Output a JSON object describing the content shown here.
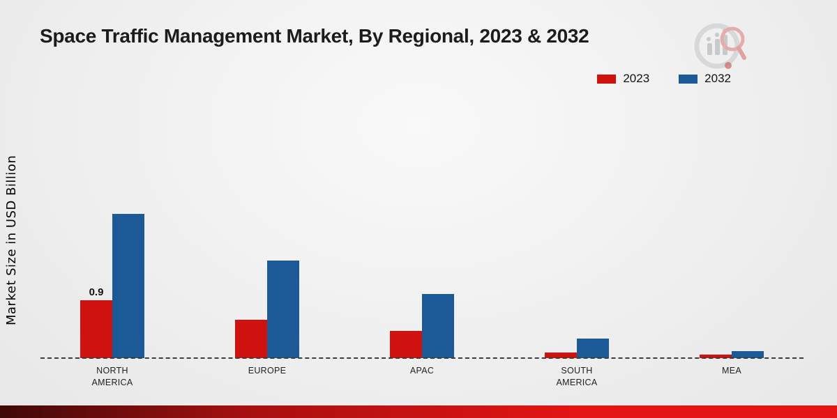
{
  "chart_data": {
    "type": "bar",
    "title": "Space Traffic Management Market, By Regional, 2023 & 2032",
    "xlabel": "",
    "ylabel": "Market Size in USD Billion",
    "categories": [
      "NORTH AMERICA",
      "EUROPE",
      "APAC",
      "SOUTH AMERICA",
      "MEA"
    ],
    "category_label_lines": [
      [
        "NORTH",
        "AMERICA"
      ],
      [
        "EUROPE"
      ],
      [
        "APAC"
      ],
      [
        "SOUTH",
        "AMERICA"
      ],
      [
        "MEA"
      ]
    ],
    "series": [
      {
        "name": "2023",
        "color": "#cf1110",
        "values": [
          0.9,
          0.6,
          0.42,
          0.09,
          0.05
        ]
      },
      {
        "name": "2032",
        "color": "#1b5a96",
        "values": [
          2.25,
          1.52,
          1.0,
          0.3,
          0.11
        ]
      }
    ],
    "ylim": [
      0,
      2.5
    ],
    "grid": false,
    "legend_position": "top-right",
    "baseline_style": "dashed",
    "annotations": [
      {
        "series_index": 0,
        "category_index": 0,
        "text": "0.9"
      }
    ]
  },
  "footer": {
    "bar_gradient": [
      "#3f0808",
      "#a81010",
      "#e51414"
    ]
  }
}
